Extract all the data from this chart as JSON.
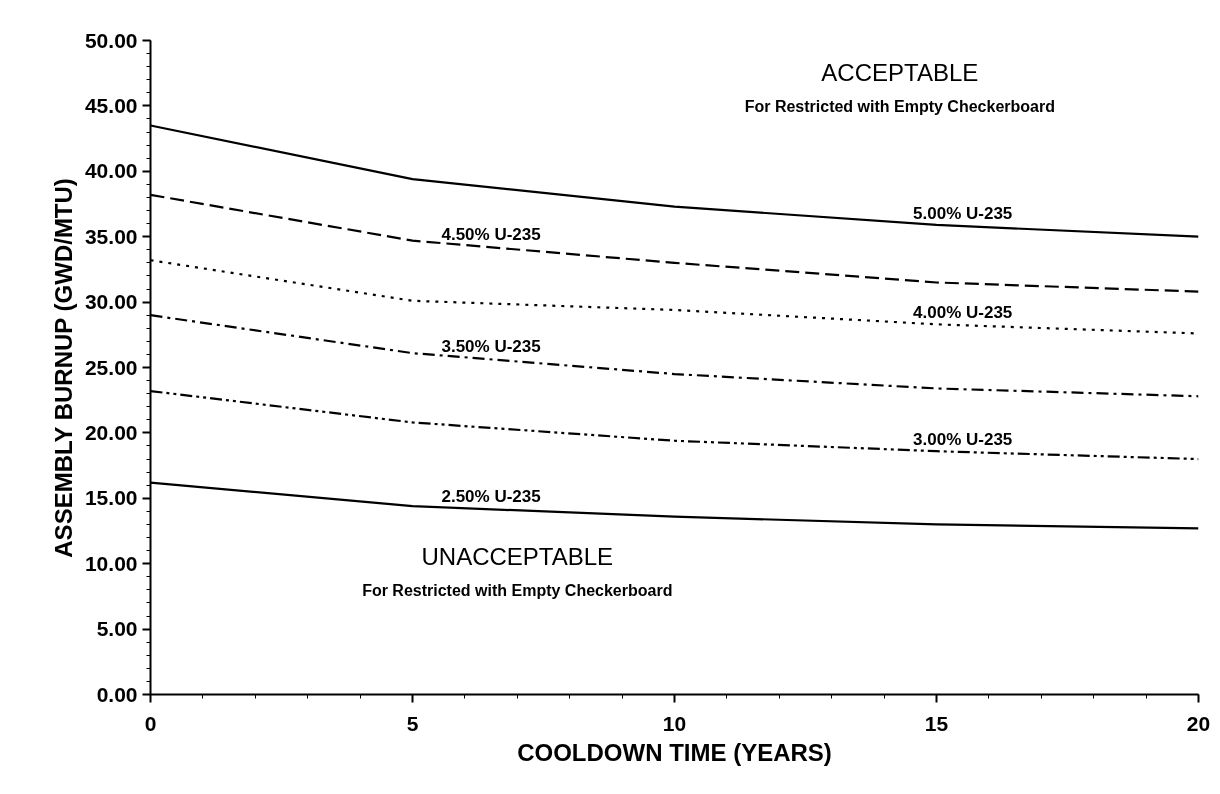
{
  "chart_data": {
    "type": "line",
    "xlabel": "COOLDOWN TIME (YEARS)",
    "ylabel": "ASSEMBLY BURNUP (GWD/MTU)",
    "x": [
      0,
      5,
      10,
      15,
      20
    ],
    "series": [
      {
        "name": "5.00% U-235",
        "color": "#000000",
        "line_style": "solid",
        "values": [
          43.5,
          39.4,
          37.3,
          35.9,
          35.0
        ]
      },
      {
        "name": "4.50% U-235",
        "color": "#000000",
        "line_style": "dashed",
        "values": [
          38.2,
          34.7,
          33.0,
          31.5,
          30.8
        ]
      },
      {
        "name": "4.00% U-235",
        "color": "#000000",
        "line_style": "dotted",
        "values": [
          33.2,
          30.1,
          29.4,
          28.3,
          27.6
        ]
      },
      {
        "name": "3.50% U-235",
        "color": "#000000",
        "line_style": "dashdot",
        "values": [
          29.0,
          26.1,
          24.5,
          23.4,
          22.8
        ]
      },
      {
        "name": "3.00% U-235",
        "color": "#000000",
        "line_style": "dashdotdot",
        "values": [
          23.2,
          20.8,
          19.4,
          18.6,
          18.0
        ]
      },
      {
        "name": "2.50% U-235",
        "color": "#000000",
        "line_style": "solid",
        "values": [
          16.2,
          14.4,
          13.6,
          13.0,
          12.7
        ]
      }
    ],
    "annotations": [
      "ACCEPTABLE",
      "For Restricted with Empty Checkerboard",
      "UNACCEPTABLE",
      "For Restricted with Empty Checkerboard"
    ],
    "xlim": [
      0,
      20
    ],
    "xticks": [
      0,
      5,
      10,
      15,
      20
    ],
    "ylim": [
      0,
      50
    ],
    "yticks": [
      {
        "value": 0,
        "label": "0.00"
      },
      {
        "value": 5,
        "label": "5.00"
      },
      {
        "value": 10,
        "label": "10.00"
      },
      {
        "value": 15,
        "label": "15.00"
      },
      {
        "value": 20,
        "label": "20.00"
      },
      {
        "value": 25,
        "label": "25.00"
      },
      {
        "value": 30,
        "label": "30.00"
      },
      {
        "value": 35,
        "label": "35.00"
      },
      {
        "value": 40,
        "label": "40.00"
      },
      {
        "value": 45,
        "label": "45.00"
      },
      {
        "value": 50,
        "label": "50.00"
      }
    ],
    "grid": false,
    "marker": "none"
  }
}
